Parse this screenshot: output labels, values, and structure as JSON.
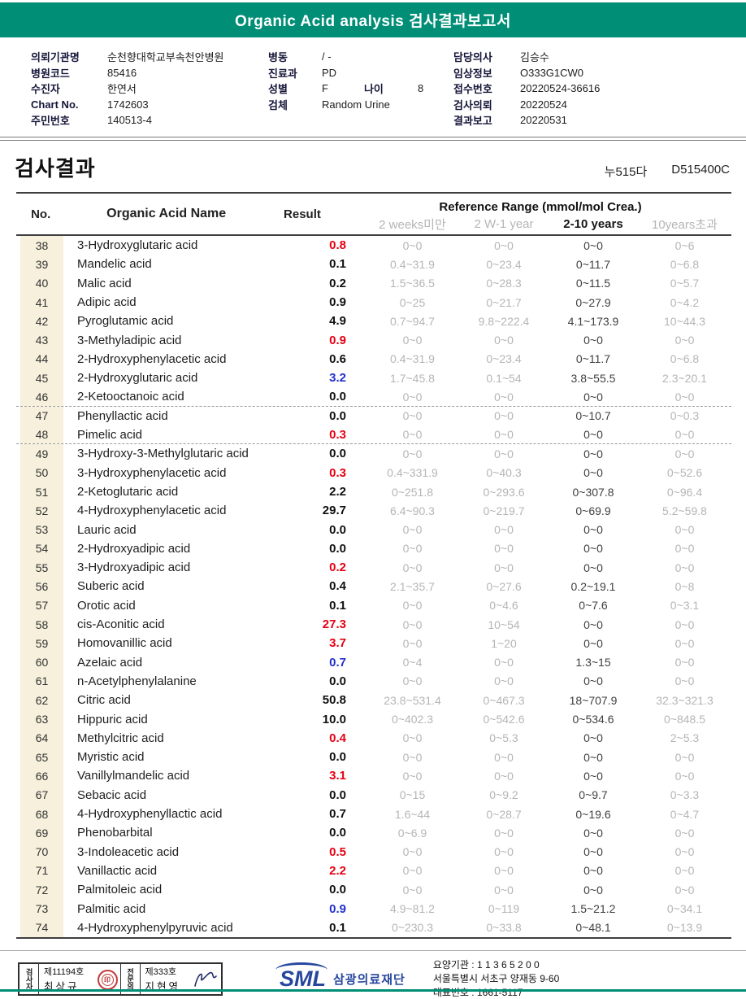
{
  "colors": {
    "banner": "#008e76",
    "high": "#e60012",
    "low": "#2330cc",
    "ref_gray": "#b5b5b5",
    "ref_dark": "#3f3f3f",
    "no_bg": "#f6f0dc",
    "logo_blue": "#27479e"
  },
  "banner": {
    "title": "Organic Acid analysis 검사결과보고서"
  },
  "info": {
    "left": [
      {
        "label": "의뢰기관명",
        "value": "순천향대학교부속천안병원"
      },
      {
        "label": "병원코드",
        "value": "85416"
      },
      {
        "label": "수진자",
        "value": "한연서"
      },
      {
        "label": "Chart No.",
        "value": "1742603"
      },
      {
        "label": "주민번호",
        "value": "140513-4"
      }
    ],
    "middle": [
      {
        "label": "병동",
        "value": "/ -"
      },
      {
        "label": "진료과",
        "value": "PD"
      },
      {
        "label": "성별",
        "value": "F"
      },
      {
        "label": "검체",
        "value": "Random Urine"
      }
    ],
    "age": {
      "label": "나이",
      "value": "8"
    },
    "right": [
      {
        "label": "담당의사",
        "value": "김승수"
      },
      {
        "label": "임상정보",
        "value": "O333G1CW0"
      },
      {
        "label": "접수번호",
        "value": "20220524-36616"
      },
      {
        "label": "검사의뢰",
        "value": "20220524"
      },
      {
        "label": "결과보고",
        "value": "20220531"
      }
    ]
  },
  "section": {
    "title": "검사결과",
    "code_kr": "누515다",
    "code_en": "D515400C"
  },
  "table": {
    "col_no": "No.",
    "col_name": "Organic Acid Name",
    "col_result": "Result",
    "ref_header": "Reference Range (mmol/mol Crea.)",
    "ref_cols": [
      "2 weeks미만",
      "2 W-1 year",
      "2-10 years",
      "10years초과"
    ],
    "rows": [
      {
        "no": "38",
        "name": "3-Hydroxyglutaric acid",
        "result": "0.8",
        "flag": "high",
        "ranges": [
          "0~0",
          "0~0",
          "0~0",
          "0~6"
        ]
      },
      {
        "no": "39",
        "name": "Mandelic acid",
        "result": "0.1",
        "flag": "",
        "ranges": [
          "0.4~31.9",
          "0~23.4",
          "0~11.7",
          "0~6.8"
        ]
      },
      {
        "no": "40",
        "name": "Malic acid",
        "result": "0.2",
        "flag": "",
        "ranges": [
          "1.5~36.5",
          "0~28.3",
          "0~11.5",
          "0~5.7"
        ]
      },
      {
        "no": "41",
        "name": "Adipic acid",
        "result": "0.9",
        "flag": "",
        "ranges": [
          "0~25",
          "0~21.7",
          "0~27.9",
          "0~4.2"
        ]
      },
      {
        "no": "42",
        "name": "Pyroglutamic acid",
        "result": "4.9",
        "flag": "",
        "ranges": [
          "0.7~94.7",
          "9.8~222.4",
          "4.1~173.9",
          "10~44.3"
        ]
      },
      {
        "no": "43",
        "name": "3-Methyladipic acid",
        "result": "0.9",
        "flag": "high",
        "ranges": [
          "0~0",
          "0~0",
          "0~0",
          "0~0"
        ]
      },
      {
        "no": "44",
        "name": "2-Hydroxyphenylacetic acid",
        "result": "0.6",
        "flag": "",
        "ranges": [
          "0.4~31.9",
          "0~23.4",
          "0~11.7",
          "0~6.8"
        ]
      },
      {
        "no": "45",
        "name": "2-Hydroxyglutaric acid",
        "result": "3.2",
        "flag": "low",
        "ranges": [
          "1.7~45.8",
          "0.1~54",
          "3.8~55.5",
          "2.3~20.1"
        ]
      },
      {
        "no": "46",
        "name": "2-Ketooctanoic acid",
        "result": "0.0",
        "flag": "",
        "dashed": true,
        "ranges": [
          "0~0",
          "0~0",
          "0~0",
          "0~0"
        ]
      },
      {
        "no": "47",
        "name": "Phenyllactic acid",
        "result": "0.0",
        "flag": "",
        "ranges": [
          "0~0",
          "0~0",
          "0~10.7",
          "0~0.3"
        ]
      },
      {
        "no": "48",
        "name": "Pimelic acid",
        "result": "0.3",
        "flag": "high",
        "dashed": true,
        "ranges": [
          "0~0",
          "0~0",
          "0~0",
          "0~0"
        ]
      },
      {
        "no": "49",
        "name": "3-Hydroxy-3-Methylglutaric acid",
        "result": "0.0",
        "flag": "",
        "ranges": [
          "0~0",
          "0~0",
          "0~0",
          "0~0"
        ]
      },
      {
        "no": "50",
        "name": "3-Hydroxyphenylacetic acid",
        "result": "0.3",
        "flag": "high",
        "ranges": [
          "0.4~331.9",
          "0~40.3",
          "0~0",
          "0~52.6"
        ]
      },
      {
        "no": "51",
        "name": "2-Ketoglutaric acid",
        "result": "2.2",
        "flag": "",
        "ranges": [
          "0~251.8",
          "0~293.6",
          "0~307.8",
          "0~96.4"
        ]
      },
      {
        "no": "52",
        "name": "4-Hydroxyphenylacetic acid",
        "result": "29.7",
        "flag": "",
        "ranges": [
          "6.4~90.3",
          "0~219.7",
          "0~69.9",
          "5.2~59.8"
        ]
      },
      {
        "no": "53",
        "name": "Lauric acid",
        "result": "0.0",
        "flag": "",
        "ranges": [
          "0~0",
          "0~0",
          "0~0",
          "0~0"
        ]
      },
      {
        "no": "54",
        "name": "2-Hydroxyadipic acid",
        "result": "0.0",
        "flag": "",
        "ranges": [
          "0~0",
          "0~0",
          "0~0",
          "0~0"
        ]
      },
      {
        "no": "55",
        "name": "3-Hydroxyadipic acid",
        "result": "0.2",
        "flag": "high",
        "ranges": [
          "0~0",
          "0~0",
          "0~0",
          "0~0"
        ]
      },
      {
        "no": "56",
        "name": "Suberic acid",
        "result": "0.4",
        "flag": "",
        "ranges": [
          "2.1~35.7",
          "0~27.6",
          "0.2~19.1",
          "0~8"
        ]
      },
      {
        "no": "57",
        "name": "Orotic acid",
        "result": "0.1",
        "flag": "",
        "ranges": [
          "0~0",
          "0~4.6",
          "0~7.6",
          "0~3.1"
        ]
      },
      {
        "no": "58",
        "name": "cis-Aconitic acid",
        "result": "27.3",
        "flag": "high",
        "ranges": [
          "0~0",
          "10~54",
          "0~0",
          "0~0"
        ]
      },
      {
        "no": "59",
        "name": "Homovanillic acid",
        "result": "3.7",
        "flag": "high",
        "ranges": [
          "0~0",
          "1~20",
          "0~0",
          "0~0"
        ]
      },
      {
        "no": "60",
        "name": "Azelaic acid",
        "result": "0.7",
        "flag": "low",
        "ranges": [
          "0~4",
          "0~0",
          "1.3~15",
          "0~0"
        ]
      },
      {
        "no": "61",
        "name": "n-Acetylphenylalanine",
        "result": "0.0",
        "flag": "",
        "ranges": [
          "0~0",
          "0~0",
          "0~0",
          "0~0"
        ]
      },
      {
        "no": "62",
        "name": "Citric acid",
        "result": "50.8",
        "flag": "",
        "ranges": [
          "23.8~531.4",
          "0~467.3",
          "18~707.9",
          "32.3~321.3"
        ]
      },
      {
        "no": "63",
        "name": "Hippuric acid",
        "result": "10.0",
        "flag": "",
        "ranges": [
          "0~402.3",
          "0~542.6",
          "0~534.6",
          "0~848.5"
        ]
      },
      {
        "no": "64",
        "name": "Methylcitric acid",
        "result": "0.4",
        "flag": "high",
        "ranges": [
          "0~0",
          "0~5.3",
          "0~0",
          "2~5.3"
        ]
      },
      {
        "no": "65",
        "name": "Myristic acid",
        "result": "0.0",
        "flag": "",
        "ranges": [
          "0~0",
          "0~0",
          "0~0",
          "0~0"
        ]
      },
      {
        "no": "66",
        "name": "Vanillylmandelic acid",
        "result": "3.1",
        "flag": "high",
        "ranges": [
          "0~0",
          "0~0",
          "0~0",
          "0~0"
        ]
      },
      {
        "no": "67",
        "name": "Sebacic acid",
        "result": "0.0",
        "flag": "",
        "ranges": [
          "0~15",
          "0~9.2",
          "0~9.7",
          "0~3.3"
        ]
      },
      {
        "no": "68",
        "name": "4-Hydroxyphenyllactic acid",
        "result": "0.7",
        "flag": "",
        "ranges": [
          "1.6~44",
          "0~28.7",
          "0~19.6",
          "0~4.7"
        ]
      },
      {
        "no": "69",
        "name": "Phenobarbital",
        "result": "0.0",
        "flag": "",
        "ranges": [
          "0~6.9",
          "0~0",
          "0~0",
          "0~0"
        ]
      },
      {
        "no": "70",
        "name": "3-Indoleacetic acid",
        "result": "0.5",
        "flag": "high",
        "ranges": [
          "0~0",
          "0~0",
          "0~0",
          "0~0"
        ]
      },
      {
        "no": "71",
        "name": "Vanillactic acid",
        "result": "2.2",
        "flag": "high",
        "ranges": [
          "0~0",
          "0~0",
          "0~0",
          "0~0"
        ]
      },
      {
        "no": "72",
        "name": "Palmitoleic acid",
        "result": "0.0",
        "flag": "",
        "ranges": [
          "0~0",
          "0~0",
          "0~0",
          "0~0"
        ]
      },
      {
        "no": "73",
        "name": "Palmitic acid",
        "result": "0.9",
        "flag": "low",
        "ranges": [
          "4.9~81.2",
          "0~119",
          "1.5~21.2",
          "0~34.1"
        ]
      },
      {
        "no": "74",
        "name": "4-Hydroxyphenylpyruvic acid",
        "result": "0.1",
        "flag": "",
        "ranges": [
          "0~230.3",
          "0~33.8",
          "0~48.1",
          "0~13.9"
        ]
      }
    ]
  },
  "footer": {
    "examiner_label": "검사자",
    "examiner_no": "제11194호",
    "examiner_name": "최상규",
    "specialist_label": "전문의",
    "specialist_no": "제333호",
    "specialist_name": "지현영",
    "logo_text": "SML",
    "org_name": "삼광의료재단",
    "line1": "요양기관 : 1 1 3 6 5 2 0 0",
    "line2": "서울특별시 서초구 양재동 9-60",
    "line3": "대표번호 : 1661-5117"
  }
}
